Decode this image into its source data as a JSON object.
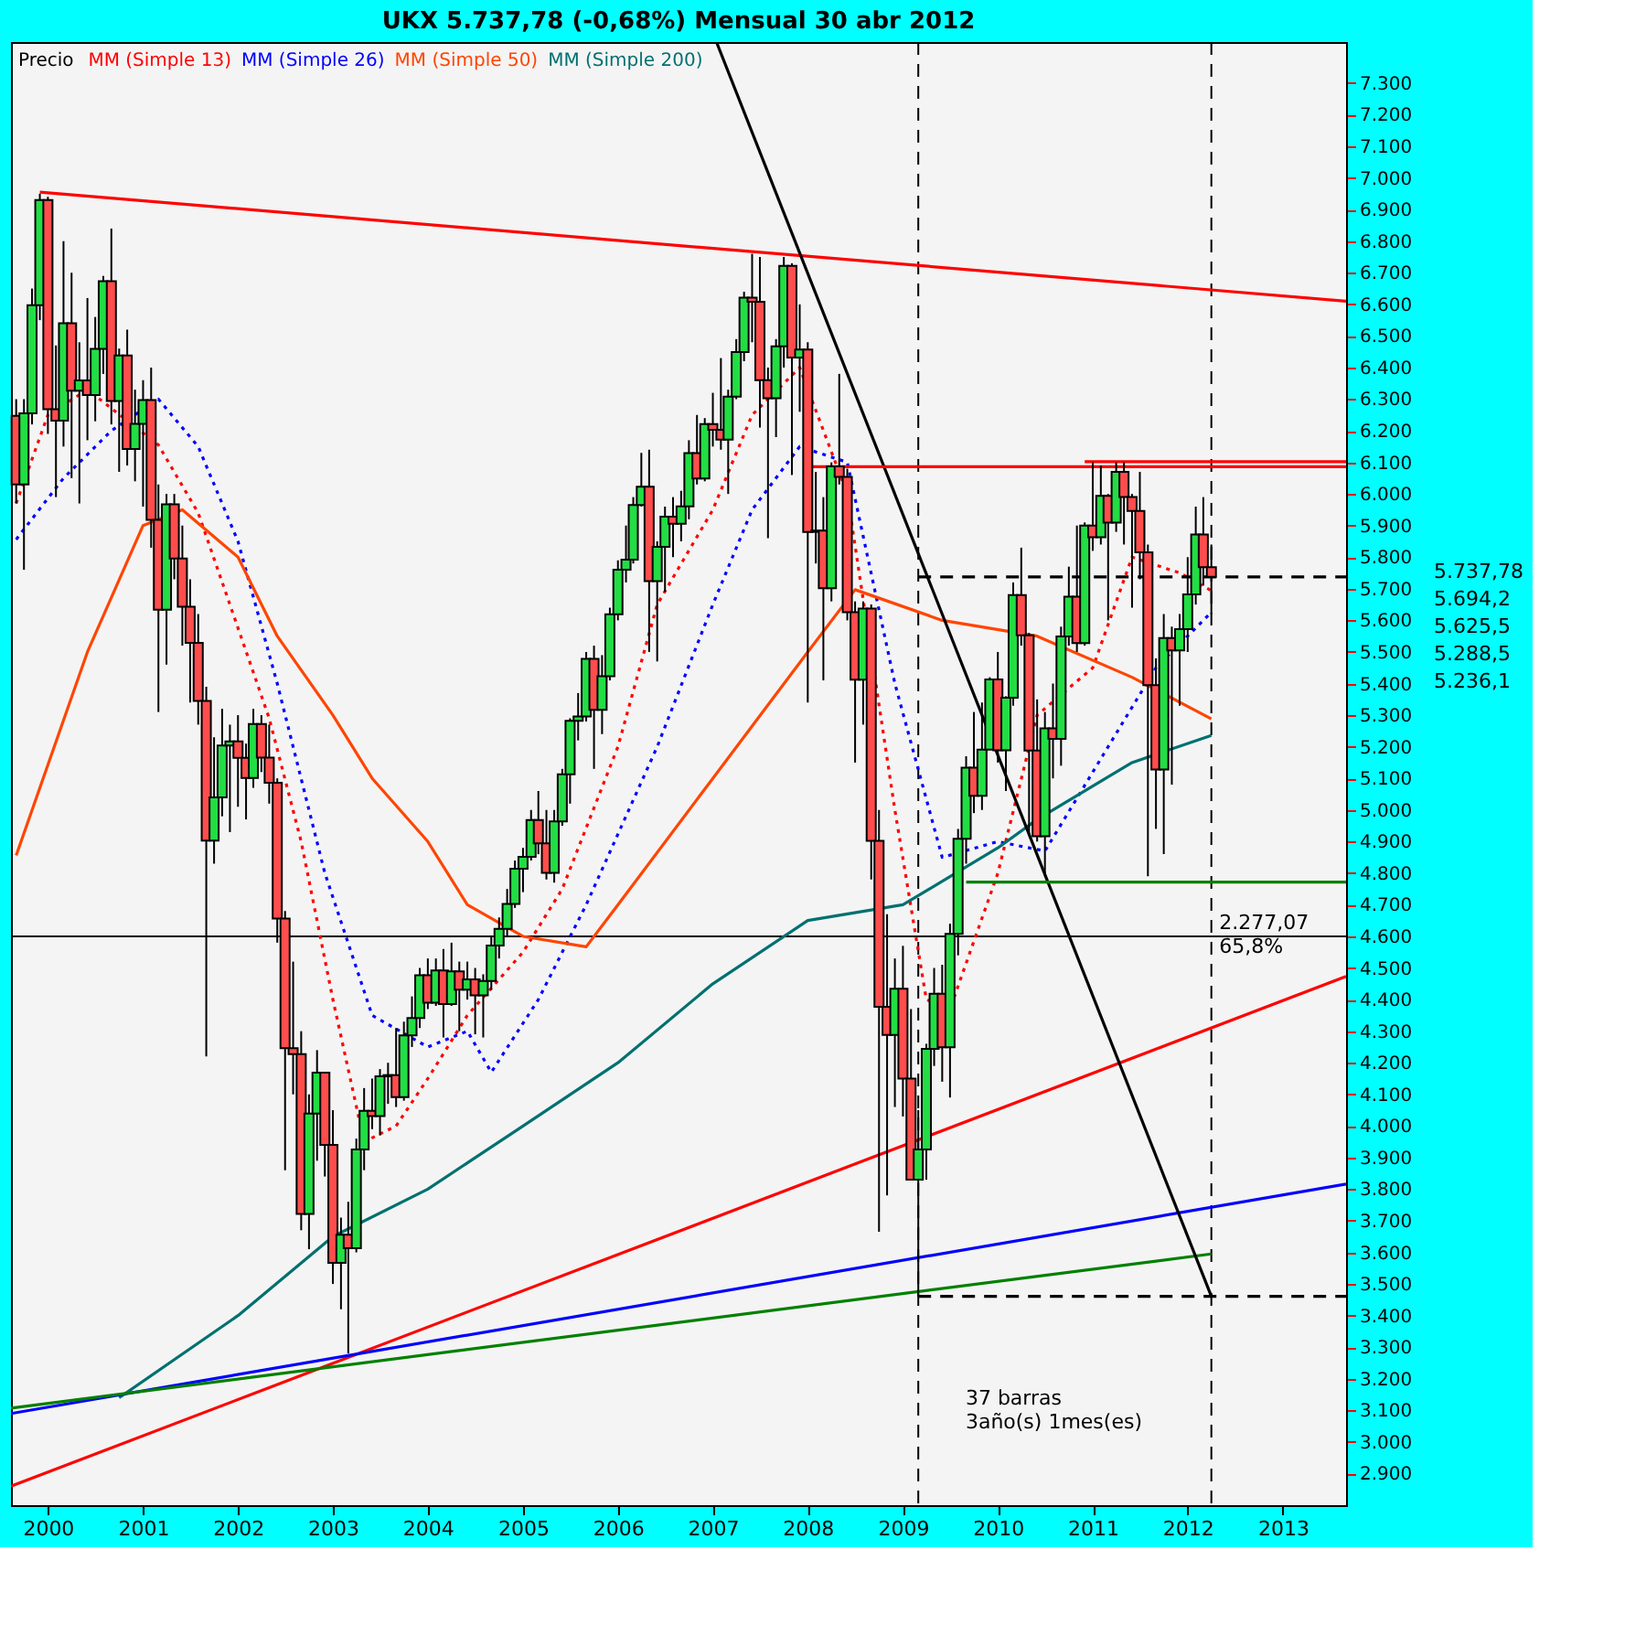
{
  "chart_data": {
    "type": "candlestick",
    "title": "UKX   5.737,78 (-0,68%)   Mensual  30 abr 2012",
    "legend_title": "Precio",
    "legend": "top left",
    "colors": [
      "#ff4d4d",
      "#22dd44",
      "#22dd44",
      "#22dd44",
      "#ff4d4d",
      "#ff4d4d",
      "#22dd44",
      "#ff4d4d",
      "#22dd44",
      "#ff4d4d",
      "#22dd44",
      "#22dd44",
      "#ff4d4d",
      "#22dd44",
      "#ff4d4d",
      "#22dd44",
      "#22dd44",
      "#ff4d4d",
      "#ff4d4d",
      "#22dd44",
      "#ff4d4d",
      "#ff4d4d",
      "#ff4d4d",
      "#ff4d4d",
      "#ff4d4d",
      "#22dd44",
      "#22dd44",
      "#22dd44",
      "#ff4d4d",
      "#ff4d4d",
      "#22dd44",
      "#ff4d4d",
      "#ff4d4d",
      "#ff4d4d",
      "#ff4d4d",
      "#ff4d4d",
      "#ff4d4d",
      "#22dd44",
      "#22dd44",
      "#ff4d4d",
      "#ff4d4d",
      "#22dd44",
      "#ff4d4d",
      "#22dd44",
      "#22dd44",
      "#ff4d4d",
      "#22dd44",
      "#22dd44",
      "#ff4d4d",
      "#22dd44",
      "#22dd44",
      "#22dd44",
      "#ff4d4d",
      "#22dd44",
      "#ff4d4d",
      "#22dd44",
      "#ff4d4d",
      "#22dd44",
      "#ff4d4d",
      "#22dd44",
      "#22dd44",
      "#22dd44",
      "#22dd44",
      "#22dd44",
      "#22dd44",
      "#22dd44",
      "#ff4d4d",
      "#ff4d4d",
      "#22dd44",
      "#22dd44",
      "#22dd44",
      "#22dd44",
      "#22dd44",
      "#ff4d4d",
      "#22dd44",
      "#22dd44",
      "#22dd44",
      "#22dd44",
      "#22dd44",
      "#22dd44",
      "#ff4d4d",
      "#22dd44",
      "#22dd44",
      "#ff4d4d",
      "#22dd44",
      "#22dd44",
      "#ff4d4d",
      "#22dd44",
      "#ff4d4d",
      "#ff4d4d",
      "#22dd44",
      "#22dd44",
      "#22dd44",
      "#ff4d4d",
      "#ff4d4d",
      "#ff4d4d",
      "#22dd44",
      "#22dd44",
      "#ff4d4d",
      "#22dd44",
      "#ff4d4d",
      "#22dd44",
      "#ff4d4d",
      "#22dd44",
      "#ff4d4d",
      "#ff4d4d",
      "#ff4d4d",
      "#22dd44",
      "#ff4d4d",
      "#ff4d4d",
      "#ff4d4d",
      "#22dd44",
      "#ff4d4d",
      "#ff4d4d",
      "#22dd44",
      "#22dd44",
      "#22dd44",
      "#ff4d4d",
      "#22dd44",
      "#22dd44",
      "#22dd44",
      "#ff4d4d",
      "#22dd44",
      "#22dd44",
      "#ff4d4d",
      "#22dd44",
      "#22dd44",
      "#ff4d4d",
      "#ff4d4d",
      "#ff4d4d",
      "#22dd44",
      "#ff4d4d",
      "#22dd44",
      "#22dd44",
      "#ff4d4d",
      "#22dd44",
      "#ff4d4d",
      "#22dd44",
      "#ff4d4d",
      "#22dd44",
      "#ff4d4d",
      "#ff4d4d",
      "#ff4d4d",
      "#ff4d4d",
      "#ff4d4d",
      "#22dd44",
      "#ff4d4d",
      "#22dd44",
      "#22dd44",
      "#22dd44",
      "#ff4d4d",
      "#ff4d4d"
    ],
    "x": [
      "1999-09",
      "1999-10",
      "1999-11",
      "1999-12",
      "2000-01",
      "2000-02",
      "2000-03",
      "2000-04",
      "2000-05",
      "2000-06",
      "2000-07",
      "2000-08",
      "2000-09",
      "2000-10",
      "2000-11",
      "2000-12",
      "2001-01",
      "2001-02",
      "2001-03",
      "2001-04",
      "2001-05",
      "2001-06",
      "2001-07",
      "2001-08",
      "2001-09",
      "2001-10",
      "2001-11",
      "2001-12",
      "2002-01",
      "2002-02",
      "2002-03",
      "2002-04",
      "2002-05",
      "2002-06",
      "2002-07",
      "2002-08",
      "2002-09",
      "2002-10",
      "2002-11",
      "2002-12",
      "2003-01",
      "2003-02",
      "2003-03",
      "2003-04",
      "2003-05",
      "2003-06",
      "2003-07",
      "2003-08",
      "2003-09",
      "2003-10",
      "2003-11",
      "2003-12",
      "2004-01",
      "2004-02",
      "2004-03",
      "2004-04",
      "2004-05",
      "2004-06",
      "2004-07",
      "2004-08",
      "2004-09",
      "2004-10",
      "2004-11",
      "2004-12",
      "2005-01",
      "2005-02",
      "2005-03",
      "2005-04",
      "2005-05",
      "2005-06",
      "2005-07",
      "2005-08",
      "2005-09",
      "2005-10",
      "2005-11",
      "2005-12",
      "2006-01",
      "2006-02",
      "2006-03",
      "2006-04",
      "2006-05",
      "2006-06",
      "2006-07",
      "2006-08",
      "2006-09",
      "2006-10",
      "2006-11",
      "2006-12",
      "2007-01",
      "2007-02",
      "2007-03",
      "2007-04",
      "2007-05",
      "2007-06",
      "2007-07",
      "2007-08",
      "2007-09",
      "2007-10",
      "2007-11",
      "2007-12",
      "2008-01",
      "2008-02",
      "2008-03",
      "2008-04",
      "2008-05",
      "2008-06",
      "2008-07",
      "2008-08",
      "2008-09",
      "2008-10",
      "2008-11",
      "2008-12",
      "2009-01",
      "2009-02",
      "2009-03",
      "2009-04",
      "2009-05",
      "2009-06",
      "2009-07",
      "2009-08",
      "2009-09",
      "2009-10",
      "2009-11",
      "2009-12",
      "2010-01",
      "2010-02",
      "2010-03",
      "2010-04",
      "2010-05",
      "2010-06",
      "2010-07",
      "2010-08",
      "2010-09",
      "2010-10",
      "2010-11",
      "2010-12",
      "2011-01",
      "2011-02",
      "2011-03",
      "2011-04",
      "2011-05",
      "2011-06",
      "2011-07",
      "2011-08",
      "2011-09",
      "2011-10",
      "2011-11",
      "2011-12",
      "2012-01",
      "2012-02",
      "2012-03",
      "2012-04"
    ],
    "ohlc": [
      [
        6247,
        6300,
        5970,
        6030
      ],
      [
        6030,
        6300,
        5760,
        6255
      ],
      [
        6255,
        6650,
        6220,
        6597
      ],
      [
        6597,
        6950,
        6550,
        6930
      ],
      [
        6930,
        6940,
        6190,
        6268
      ],
      [
        6268,
        6470,
        5990,
        6232
      ],
      [
        6232,
        6800,
        6150,
        6540
      ],
      [
        6540,
        6700,
        6050,
        6327
      ],
      [
        6327,
        6480,
        5970,
        6359
      ],
      [
        6359,
        6620,
        6170,
        6313
      ],
      [
        6313,
        6560,
        6230,
        6459
      ],
      [
        6459,
        6690,
        6380,
        6673
      ],
      [
        6673,
        6840,
        6220,
        6294
      ],
      [
        6294,
        6460,
        6070,
        6438
      ],
      [
        6438,
        6520,
        6090,
        6142
      ],
      [
        6142,
        6330,
        6040,
        6222
      ],
      [
        6222,
        6360,
        5960,
        6297
      ],
      [
        6297,
        6400,
        5830,
        5918
      ],
      [
        5918,
        6030,
        5310,
        5634
      ],
      [
        5634,
        6000,
        5460,
        5967
      ],
      [
        5967,
        6000,
        5730,
        5796
      ],
      [
        5796,
        5900,
        5520,
        5643
      ],
      [
        5643,
        5730,
        5340,
        5529
      ],
      [
        5529,
        5620,
        5270,
        5345
      ],
      [
        5345,
        5390,
        4220,
        4903
      ],
      [
        4903,
        5230,
        4830,
        5040
      ],
      [
        5040,
        5320,
        4980,
        5204
      ],
      [
        5204,
        5270,
        4930,
        5217
      ],
      [
        5217,
        5300,
        5010,
        5165
      ],
      [
        5165,
        5210,
        4970,
        5101
      ],
      [
        5101,
        5320,
        5070,
        5272
      ],
      [
        5272,
        5300,
        5120,
        5166
      ],
      [
        5166,
        5270,
        5020,
        5086
      ],
      [
        5086,
        5100,
        4580,
        4656
      ],
      [
        4656,
        4680,
        3860,
        4246
      ],
      [
        4246,
        4520,
        4100,
        4227
      ],
      [
        4227,
        4300,
        3670,
        3722
      ],
      [
        3722,
        4100,
        3610,
        4039
      ],
      [
        4039,
        4240,
        3890,
        4169
      ],
      [
        4169,
        4170,
        3840,
        3940
      ],
      [
        3940,
        4050,
        3500,
        3567
      ],
      [
        3567,
        3710,
        3420,
        3656
      ],
      [
        3656,
        3760,
        3280,
        3613
      ],
      [
        3613,
        3960,
        3600,
        3926
      ],
      [
        3926,
        4120,
        3860,
        4048
      ],
      [
        4048,
        4150,
        3990,
        4031
      ],
      [
        4031,
        4180,
        3970,
        4157
      ],
      [
        4157,
        4200,
        4070,
        4161
      ],
      [
        4161,
        4310,
        4060,
        4091
      ],
      [
        4091,
        4330,
        4080,
        4287
      ],
      [
        4287,
        4410,
        4250,
        4342
      ],
      [
        4342,
        4500,
        4310,
        4477
      ],
      [
        4477,
        4530,
        4370,
        4390
      ],
      [
        4390,
        4530,
        4380,
        4492
      ],
      [
        4492,
        4560,
        4280,
        4386
      ],
      [
        4386,
        4580,
        4380,
        4489
      ],
      [
        4489,
        4520,
        4300,
        4431
      ],
      [
        4431,
        4520,
        4400,
        4464
      ],
      [
        4464,
        4500,
        4290,
        4413
      ],
      [
        4413,
        4480,
        4280,
        4459
      ],
      [
        4459,
        4600,
        4430,
        4571
      ],
      [
        4571,
        4660,
        4530,
        4624
      ],
      [
        4624,
        4750,
        4600,
        4703
      ],
      [
        4703,
        4840,
        4690,
        4814
      ],
      [
        4814,
        4880,
        4740,
        4852
      ],
      [
        4852,
        5000,
        4840,
        4968
      ],
      [
        4968,
        5060,
        4860,
        4894
      ],
      [
        4894,
        5000,
        4780,
        4801
      ],
      [
        4801,
        5000,
        4770,
        4964
      ],
      [
        4964,
        5130,
        4950,
        5113
      ],
      [
        5113,
        5290,
        5020,
        5282
      ],
      [
        5282,
        5370,
        5220,
        5296
      ],
      [
        5296,
        5500,
        5280,
        5478
      ],
      [
        5478,
        5520,
        5130,
        5317
      ],
      [
        5317,
        5490,
        5240,
        5423
      ],
      [
        5423,
        5640,
        5410,
        5619
      ],
      [
        5619,
        5790,
        5600,
        5760
      ],
      [
        5760,
        5900,
        5720,
        5792
      ],
      [
        5792,
        5990,
        5780,
        5965
      ],
      [
        5965,
        6130,
        5960,
        6023
      ],
      [
        6023,
        6140,
        5500,
        5724
      ],
      [
        5724,
        5850,
        5470,
        5833
      ],
      [
        5833,
        5960,
        5690,
        5928
      ],
      [
        5928,
        5990,
        5800,
        5906
      ],
      [
        5906,
        6010,
        5850,
        5961
      ],
      [
        5961,
        6170,
        5920,
        6129
      ],
      [
        6129,
        6250,
        6030,
        6049
      ],
      [
        6049,
        6240,
        6040,
        6221
      ],
      [
        6221,
        6320,
        6150,
        6203
      ],
      [
        6203,
        6430,
        6140,
        6172
      ],
      [
        6172,
        6330,
        6000,
        6308
      ],
      [
        6308,
        6490,
        6300,
        6449
      ],
      [
        6449,
        6640,
        6420,
        6621
      ],
      [
        6621,
        6760,
        6480,
        6608
      ],
      [
        6608,
        6750,
        6210,
        6360
      ],
      [
        6360,
        6400,
        5860,
        6303
      ],
      [
        6303,
        6490,
        6180,
        6467
      ],
      [
        6467,
        6750,
        6400,
        6722
      ],
      [
        6722,
        6730,
        6060,
        6432
      ],
      [
        6432,
        6600,
        6260,
        6457
      ],
      [
        6457,
        6480,
        5340,
        5880
      ],
      [
        5880,
        6070,
        5780,
        5884
      ],
      [
        5884,
        5990,
        5410,
        5702
      ],
      [
        5702,
        6100,
        5660,
        6087
      ],
      [
        6087,
        6380,
        6030,
        6054
      ],
      [
        6054,
        6080,
        5600,
        5626
      ],
      [
        5626,
        5660,
        5150,
        5412
      ],
      [
        5412,
        5660,
        5270,
        5637
      ],
      [
        5637,
        5650,
        4780,
        4902
      ],
      [
        4902,
        5000,
        3665,
        4377
      ],
      [
        4377,
        4670,
        3780,
        4288
      ],
      [
        4288,
        4530,
        4060,
        4434
      ],
      [
        4434,
        4570,
        4030,
        4150
      ],
      [
        4150,
        4370,
        3830,
        3830
      ],
      [
        3830,
        4050,
        3460,
        3926
      ],
      [
        3926,
        4260,
        3830,
        4244
      ],
      [
        4244,
        4500,
        4190,
        4418
      ],
      [
        4418,
        4510,
        4140,
        4249
      ],
      [
        4249,
        4640,
        4090,
        4608
      ],
      [
        4608,
        4940,
        4540,
        4909
      ],
      [
        4909,
        5170,
        4830,
        5134
      ],
      [
        5134,
        5310,
        4990,
        5045
      ],
      [
        5045,
        5340,
        5000,
        5191
      ],
      [
        5191,
        5420,
        5190,
        5413
      ],
      [
        5413,
        5500,
        5150,
        5189
      ],
      [
        5189,
        5360,
        5060,
        5355
      ],
      [
        5355,
        5720,
        5330,
        5680
      ],
      [
        5680,
        5830,
        5520,
        5553
      ],
      [
        5553,
        5560,
        4920,
        5188
      ],
      [
        5188,
        5350,
        4900,
        4917
      ],
      [
        4917,
        5310,
        4790,
        5258
      ],
      [
        5258,
        5400,
        5100,
        5225
      ],
      [
        5225,
        5580,
        5140,
        5549
      ],
      [
        5549,
        5770,
        5520,
        5675
      ],
      [
        5675,
        5900,
        5500,
        5528
      ],
      [
        5528,
        5910,
        5520,
        5900
      ],
      [
        5900,
        6100,
        5820,
        5863
      ],
      [
        5863,
        6090,
        5840,
        5994
      ],
      [
        5994,
        6000,
        5600,
        5909
      ],
      [
        5909,
        6100,
        5880,
        6070
      ],
      [
        6070,
        6100,
        5840,
        5990
      ],
      [
        5990,
        6000,
        5640,
        5946
      ],
      [
        5946,
        6070,
        5730,
        5815
      ],
      [
        5815,
        5840,
        4790,
        5395
      ],
      [
        5395,
        5480,
        4940,
        5128
      ],
      [
        5128,
        5620,
        4860,
        5544
      ],
      [
        5544,
        5580,
        5080,
        5505
      ],
      [
        5505,
        5620,
        5330,
        5572
      ],
      [
        5572,
        5800,
        5500,
        5682
      ],
      [
        5682,
        5960,
        5650,
        5872
      ],
      [
        5872,
        5990,
        5710,
        5768
      ],
      [
        5768,
        5840,
        5620,
        5738
      ]
    ],
    "series": [
      {
        "name": "MM (Simple 13)",
        "type": "line",
        "color": "#ff0000",
        "line_style": "dotted",
        "x": [
          "1999-09",
          "2000-01",
          "2000-06",
          "2001-03",
          "2001-08",
          "2002-01",
          "2002-05",
          "2002-09",
          "2003-01",
          "2003-05",
          "2003-09",
          "2004-01",
          "2004-06",
          "2005-01",
          "2005-06",
          "2006-01",
          "2006-06",
          "2007-01",
          "2007-06",
          "2007-12",
          "2008-06",
          "2008-12",
          "2009-04",
          "2009-07",
          "2010-01",
          "2010-06",
          "2011-01",
          "2011-06",
          "2011-12",
          "2012-04"
        ],
        "values": [
          5970,
          6250,
          6330,
          6155,
          5940,
          5576,
          5290,
          4900,
          4400,
          3950,
          4000,
          4150,
          4350,
          4550,
          4750,
          5200,
          5650,
          5950,
          6250,
          6400,
          6000,
          5000,
          4400,
          4370,
          4800,
          5300,
          5450,
          5800,
          5750,
          5694.2
        ]
      },
      {
        "name": "MM (Simple 26)",
        "type": "line",
        "color": "#0000ff",
        "line_style": "dotted",
        "x": [
          "1999-09",
          "2000-03",
          "2000-09",
          "2001-03",
          "2001-08",
          "2002-01",
          "2002-06",
          "2002-12",
          "2003-06",
          "2004-01",
          "2004-06",
          "2004-09",
          "2005-03",
          "2005-09",
          "2006-06",
          "2007-01",
          "2007-06",
          "2007-12",
          "2008-06",
          "2008-12",
          "2009-06",
          "2010-01",
          "2010-07",
          "2011-03",
          "2011-09",
          "2012-04"
        ],
        "values": [
          5856,
          6050,
          6200,
          6300,
          6150,
          5850,
          5400,
          4800,
          4350,
          4250,
          4300,
          4170,
          4400,
          4700,
          5200,
          5650,
          5950,
          6150,
          6100,
          5400,
          4850,
          4900,
          4870,
          5200,
          5450,
          5625.5
        ]
      },
      {
        "name": "MM (Simple 50)",
        "type": "line",
        "color": "#ff4500",
        "line_style": "solid",
        "x": [
          "1999-09",
          "2000-06",
          "2001-01",
          "2001-06",
          "2002-01",
          "2002-06",
          "2003-01",
          "2003-06",
          "2004-01",
          "2004-06",
          "2005-01",
          "2005-09",
          "2006-01",
          "2007-01",
          "2008-01",
          "2008-07",
          "2009-06",
          "2010-06",
          "2011-06",
          "2012-04"
        ],
        "values": [
          4856,
          5500,
          5900,
          5950,
          5800,
          5550,
          5300,
          5100,
          4900,
          4700,
          4600,
          4567,
          4700,
          5100,
          5500,
          5697,
          5600,
          5550,
          5420,
          5288.5
        ]
      },
      {
        "name": "MM (Simple 200)",
        "type": "line",
        "color": "#007070",
        "line_style": "solid",
        "x": [
          "2000-10",
          "2002-01",
          "2003-01",
          "2004-01",
          "2005-01",
          "2006-01",
          "2007-01",
          "2008-01",
          "2009-01",
          "2010-01",
          "2010-06",
          "2011-06",
          "2012-04"
        ],
        "values": [
          3140,
          3400,
          3650,
          3800,
          4000,
          4200,
          4450,
          4650,
          4700,
          4880,
          4970,
          5150,
          5236.1
        ]
      },
      {
        "type": "line",
        "color": "#ff0000",
        "line_style": "solid",
        "x": [
          "1999-12",
          "2013-09-01"
        ],
        "values": [
          6955,
          6610
        ]
      },
      {
        "type": "line",
        "color": "#ff0000",
        "line_style": "solid",
        "x": [
          "1999-08-12",
          "2013-09-01"
        ],
        "values": [
          2860,
          4473
        ]
      },
      {
        "type": "line",
        "color": "#0000ff",
        "line_style": "solid",
        "x": [
          "1999-08-12",
          "2013-09-01"
        ],
        "values": [
          3090,
          3816
        ]
      },
      {
        "type": "line",
        "color": "#008000",
        "line_style": "solid",
        "x": [
          "1999-08-12",
          "2012-04"
        ],
        "values": [
          3107,
          3595
        ]
      },
      {
        "type": "line",
        "color": "#000000",
        "line_style": "solid",
        "x": [
          "2007-01-15",
          "2012-04"
        ],
        "values": [
          7430,
          3460.71
        ]
      },
      {
        "type": "line",
        "color": "#ff0000",
        "line_style": "solid",
        "x": [
          "2008-01",
          "2013-09-01"
        ],
        "values": [
          6086,
          6086
        ]
      },
      {
        "type": "line",
        "color": "#ff0000",
        "line_style": "solid",
        "x": [
          "2010-12",
          "2013-09-01"
        ],
        "values": [
          6102,
          6102
        ]
      },
      {
        "type": "line",
        "color": "#008000",
        "line_style": "solid",
        "x": [
          "2009-09",
          "2013-09-01"
        ],
        "values": [
          4772,
          4772
        ]
      },
      {
        "type": "line",
        "color": "#000000",
        "line_style": "dashed",
        "x": [
          "2009-03",
          "2013-09-01"
        ],
        "values": [
          5737.78,
          5737.78
        ]
      },
      {
        "type": "line",
        "color": "#000000",
        "line_style": "dashed",
        "x": [
          "2009-03",
          "2013-09-01"
        ],
        "values": [
          3460.71,
          3460.71
        ]
      }
    ],
    "ref_lines": [
      {
        "axis": "x",
        "value": "2009-03",
        "color": "#000000",
        "line_style": "dashed"
      },
      {
        "axis": "x",
        "value": "2012-04",
        "color": "#000000",
        "line_style": "dashed"
      },
      {
        "axis": "y",
        "value": 4600,
        "color": "#000000",
        "line_style": "solid"
      }
    ],
    "annotations": [
      "37 barras\n3año(s) 1mes(es)",
      "2.277,07\n65,8%",
      "5.737,78",
      "5.694,2",
      "5.625,5",
      "5.288,5",
      "5.236,1"
    ],
    "xlim": [
      "1999-08-12",
      "2013-09-01"
    ],
    "xticks": [
      {
        "value": "2000-01-01",
        "label": "2000"
      },
      {
        "value": "2001-01-01",
        "label": "2001"
      },
      {
        "value": "2002-01-01",
        "label": "2002"
      },
      {
        "value": "2003-01-01",
        "label": "2003"
      },
      {
        "value": "2004-01-01",
        "label": "2004"
      },
      {
        "value": "2005-01-01",
        "label": "2005"
      },
      {
        "value": "2006-01-01",
        "label": "2006"
      },
      {
        "value": "2007-01-01",
        "label": "2007"
      },
      {
        "value": "2008-01-01",
        "label": "2008"
      },
      {
        "value": "2009-01-01",
        "label": "2009"
      },
      {
        "value": "2010-01-01",
        "label": "2010"
      },
      {
        "value": "2011-01-01",
        "label": "2011"
      },
      {
        "value": "2012-01-01",
        "label": "2012"
      },
      {
        "value": "2013-01-01",
        "label": "2013"
      }
    ],
    "ylim": [
      2800,
      7430
    ],
    "yticks": [
      {
        "value": 2900,
        "label": "2.900"
      },
      {
        "value": 3000,
        "label": "3.000"
      },
      {
        "value": 3100,
        "label": "3.100"
      },
      {
        "value": 3200,
        "label": "3.200"
      },
      {
        "value": 3300,
        "label": "3.300"
      },
      {
        "value": 3400,
        "label": "3.400"
      },
      {
        "value": 3500,
        "label": "3.500"
      },
      {
        "value": 3600,
        "label": "3.600"
      },
      {
        "value": 3700,
        "label": "3.700"
      },
      {
        "value": 3800,
        "label": "3.800"
      },
      {
        "value": 3900,
        "label": "3.900"
      },
      {
        "value": 4000,
        "label": "4.000"
      },
      {
        "value": 4100,
        "label": "4.100"
      },
      {
        "value": 4200,
        "label": "4.200"
      },
      {
        "value": 4300,
        "label": "4.300"
      },
      {
        "value": 4400,
        "label": "4.400"
      },
      {
        "value": 4500,
        "label": "4.500"
      },
      {
        "value": 4600,
        "label": "4.600"
      },
      {
        "value": 4700,
        "label": "4.700"
      },
      {
        "value": 4800,
        "label": "4.800"
      },
      {
        "value": 4900,
        "label": "4.900"
      },
      {
        "value": 5000,
        "label": "5.000"
      },
      {
        "value": 5100,
        "label": "5.100"
      },
      {
        "value": 5200,
        "label": "5.200"
      },
      {
        "value": 5300,
        "label": "5.300"
      },
      {
        "value": 5400,
        "label": "5.400"
      },
      {
        "value": 5500,
        "label": "5.500"
      },
      {
        "value": 5600,
        "label": "5.600"
      },
      {
        "value": 5700,
        "label": "5.700"
      },
      {
        "value": 5800,
        "label": "5.800"
      },
      {
        "value": 5900,
        "label": "5.900"
      },
      {
        "value": 6000,
        "label": "6.000"
      },
      {
        "value": 6100,
        "label": "6.100"
      },
      {
        "value": 6200,
        "label": "6.200"
      },
      {
        "value": 6300,
        "label": "6.300"
      },
      {
        "value": 6400,
        "label": "6.400"
      },
      {
        "value": 6500,
        "label": "6.500"
      },
      {
        "value": 6600,
        "label": "6.600"
      },
      {
        "value": 6700,
        "label": "6.700"
      },
      {
        "value": 6800,
        "label": "6.800"
      },
      {
        "value": 6900,
        "label": "6.900"
      },
      {
        "value": 7000,
        "label": "7.000"
      },
      {
        "value": 7100,
        "label": "7.100"
      },
      {
        "value": 7200,
        "label": "7.200"
      },
      {
        "value": 7300,
        "label": "7.300"
      }
    ]
  }
}
